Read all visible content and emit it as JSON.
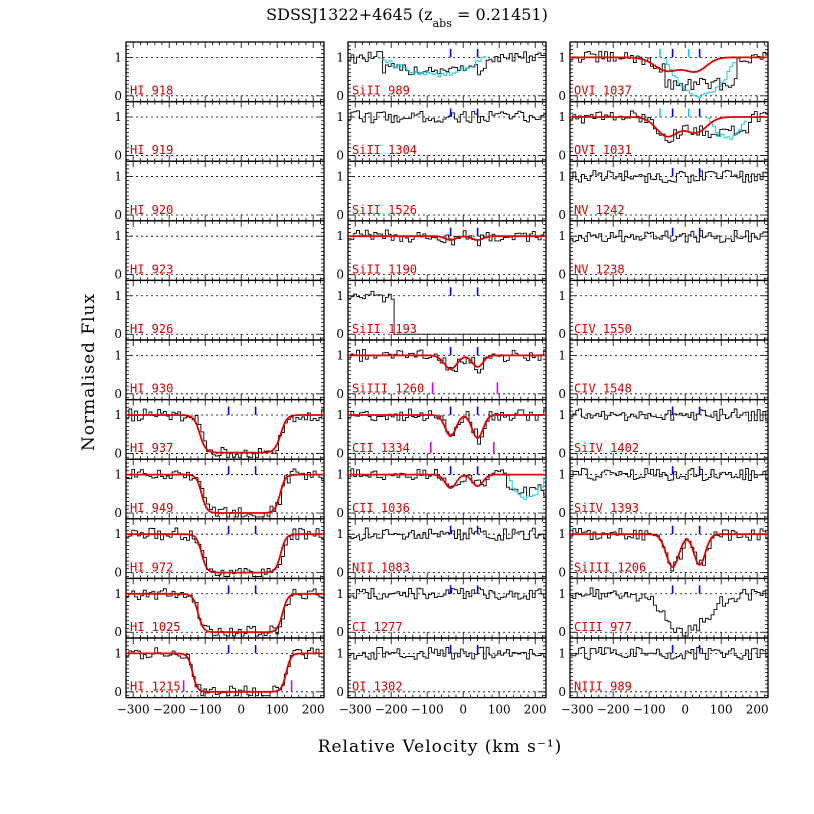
{
  "chart_data": {
    "type": "line",
    "title_main": "SDSSJ1322+4645 (z",
    "title_sub": "abs",
    "title_tail": " = 0.21451)",
    "xlabel": "Relative Velocity (km s⁻¹)",
    "ylabel": "Normalised Flux",
    "xlim": [
      -320,
      230
    ],
    "ylim": [
      -0.15,
      1.4
    ],
    "x_ticks": [
      -300,
      -200,
      -100,
      0,
      100,
      200
    ],
    "x_tick_labels": [
      "−300",
      "−200",
      "−100",
      "0",
      "100",
      "200"
    ],
    "y_ticks": [
      0,
      1
    ],
    "y_tick_labels": [
      "0",
      "1"
    ],
    "component_velocities": [
      -35,
      40
    ],
    "columns": [
      [
        {
          "label": "HI 918",
          "data": false
        },
        {
          "label": "HI 919",
          "data": false
        },
        {
          "label": "HI 920",
          "data": false
        },
        {
          "label": "HI 923",
          "data": false
        },
        {
          "label": "HI 926",
          "data": false
        },
        {
          "label": "HI 930",
          "data": false
        },
        {
          "label": "HI 937",
          "data": true,
          "model": {
            "kind": "trough",
            "x1": -115,
            "x2": 110,
            "w": 25,
            "depth": 0.98
          }
        },
        {
          "label": "HI 949",
          "data": true,
          "model": {
            "kind": "trough",
            "x1": -110,
            "x2": 108,
            "w": 22,
            "depth": 1.0
          }
        },
        {
          "label": "HI 972",
          "data": true,
          "model": {
            "kind": "trough",
            "x1": -110,
            "x2": 110,
            "w": 22,
            "depth": 1.0
          }
        },
        {
          "label": "HI 1025",
          "data": true,
          "model": {
            "kind": "trough",
            "x1": -120,
            "x2": 115,
            "w": 22,
            "depth": 1.0
          }
        },
        {
          "label": "HI 1215",
          "data": true,
          "model": {
            "kind": "trough",
            "x1": -135,
            "x2": 125,
            "w": 20,
            "depth": 1.0
          },
          "range_marks": [
            -160,
            140
          ]
        }
      ],
      [
        {
          "label": "SiII 989",
          "data": true,
          "contamination": {
            "from": -230,
            "to": 60,
            "depth": 0.45
          }
        },
        {
          "label": "SiII 1304",
          "data": true
        },
        {
          "label": "SiII 1526",
          "data": false
        },
        {
          "label": "SiII 1190",
          "data": true,
          "model": {
            "kind": "lines",
            "lines": [
              {
                "v": -35,
                "d": 0.1,
                "s": 15
              },
              {
                "v": 40,
                "d": 0.1,
                "s": 15
              }
            ]
          }
        },
        {
          "label": "SiII 1193",
          "data": true,
          "cutoff": -200
        },
        {
          "label": "SiIII 1260",
          "data": true,
          "model": {
            "kind": "lines",
            "lines": [
              {
                "v": -35,
                "d": 0.35,
                "s": 18
              },
              {
                "v": 40,
                "d": 0.3,
                "s": 15
              }
            ]
          },
          "range_marks": [
            -85,
            95
          ]
        },
        {
          "label": "CII 1334",
          "data": true,
          "model": {
            "kind": "lines",
            "lines": [
              {
                "v": -35,
                "d": 0.55,
                "s": 15
              },
              {
                "v": 40,
                "d": 0.6,
                "s": 15
              }
            ]
          },
          "range_marks": [
            -90,
            85
          ]
        },
        {
          "label": "CII 1036",
          "data": true,
          "model": {
            "kind": "lines",
            "lines": [
              {
                "v": -35,
                "d": 0.35,
                "s": 15
              },
              {
                "v": 40,
                "d": 0.3,
                "s": 15
              }
            ]
          },
          "contamination": {
            "from": 120,
            "to": 230,
            "depth": 0.6
          }
        },
        {
          "label": "NII 1083",
          "data": true
        },
        {
          "label": "CI 1277",
          "data": true
        },
        {
          "label": "OI 1302",
          "data": true
        }
      ],
      [
        {
          "label": "OVI 1037",
          "data": true,
          "model": {
            "kind": "lines",
            "lines": [
              {
                "v": -50,
                "d": 0.35,
                "s": 35
              },
              {
                "v": 30,
                "d": 0.35,
                "s": 30
              }
            ]
          },
          "contamination": {
            "from": -60,
            "to": 140,
            "depth": 1.0
          },
          "cyan_marks": [
            -70,
            10
          ]
        },
        {
          "label": "OVI 1031",
          "data": true,
          "model": {
            "kind": "lines",
            "lines": [
              {
                "v": -50,
                "d": 0.5,
                "s": 30
              },
              {
                "v": 30,
                "d": 0.4,
                "s": 30
              }
            ]
          },
          "contamination": {
            "from": 60,
            "to": 170,
            "depth": 0.55
          },
          "cyan_marks": [
            -70,
            10
          ]
        },
        {
          "label": "NV 1242",
          "data": true
        },
        {
          "label": "NV 1238",
          "data": true
        },
        {
          "label": "CIV 1550",
          "data": false
        },
        {
          "label": "CIV 1548",
          "data": false
        },
        {
          "label": "SiIV 1402",
          "data": true
        },
        {
          "label": "SiIV 1393",
          "data": true
        },
        {
          "label": "SiIII 1206",
          "data": true,
          "model": {
            "kind": "lines",
            "lines": [
              {
                "v": -35,
                "d": 0.85,
                "s": 18
              },
              {
                "v": 40,
                "d": 0.8,
                "s": 16
              }
            ]
          }
        },
        {
          "label": "CIII 977",
          "data": true,
          "broad": {
            "v": 0,
            "d": 1.0,
            "s": 55
          }
        },
        {
          "label": "NIII 989",
          "data": true
        }
      ]
    ]
  }
}
